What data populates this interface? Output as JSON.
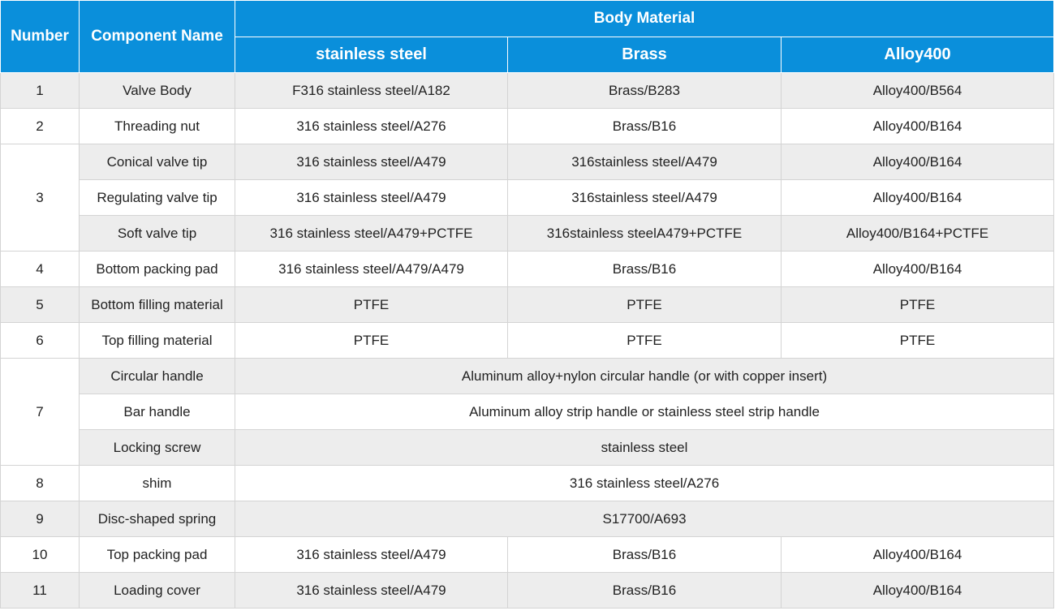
{
  "header": {
    "number": "Number",
    "component": "Component Name",
    "body_material": "Body Material",
    "materials": [
      "stainless steel",
      "Brass",
      "Alloy400"
    ]
  },
  "rows": [
    {
      "num": "1",
      "name": "Valve Body",
      "ss": "F316 stainless steel/A182",
      "brass": "Brass/B283",
      "alloy": "Alloy400/B564"
    },
    {
      "num": "2",
      "name": "Threading nut",
      "ss": "316 stainless steel/A276",
      "brass": "Brass/B16",
      "alloy": "Alloy400/B164"
    },
    {
      "num": "3",
      "name": "Conical valve tip",
      "ss": "316 stainless steel/A479",
      "brass": "316stainless steel/A479",
      "alloy": "Alloy400/B164"
    },
    {
      "name": "Regulating valve tip",
      "ss": "316 stainless steel/A479",
      "brass": "316stainless steel/A479",
      "alloy": "Alloy400/B164"
    },
    {
      "name": "Soft valve tip",
      "ss": "316 stainless steel/A479+PCTFE",
      "brass": "316stainless steelA479+PCTFE",
      "alloy": "Alloy400/B164+PCTFE"
    },
    {
      "num": "4",
      "name": "Bottom packing pad",
      "ss": "316 stainless steel/A479/A479",
      "brass": "Brass/B16",
      "alloy": "Alloy400/B164"
    },
    {
      "num": "5",
      "name": "Bottom filling material",
      "ss": "PTFE",
      "brass": "PTFE",
      "alloy": "PTFE"
    },
    {
      "num": "6",
      "name": "Top filling material",
      "ss": "PTFE",
      "brass": "PTFE",
      "alloy": "PTFE"
    },
    {
      "num": "7",
      "name": "Circular handle",
      "all": "Aluminum alloy+nylon circular handle (or with copper insert)"
    },
    {
      "name": "Bar handle",
      "all": "Aluminum alloy strip handle or stainless steel strip handle"
    },
    {
      "name": "Locking screw",
      "all": "stainless steel"
    },
    {
      "num": "8",
      "name": "shim",
      "all": "316 stainless steel/A276"
    },
    {
      "num": "9",
      "name": "Disc-shaped spring",
      "all": "S17700/A693"
    },
    {
      "num": "10",
      "name": "Top packing pad",
      "ss": "316 stainless steel/A479",
      "brass": "Brass/B16",
      "alloy": "Alloy400/B164"
    },
    {
      "num": "11",
      "name": "Loading cover",
      "ss": "316 stainless steel/A479",
      "brass": "Brass/B16",
      "alloy": "Alloy400/B164"
    }
  ],
  "colors": {
    "header": "#0a8fdb",
    "stripe": "#ededed",
    "border": "#d4d4d4"
  }
}
